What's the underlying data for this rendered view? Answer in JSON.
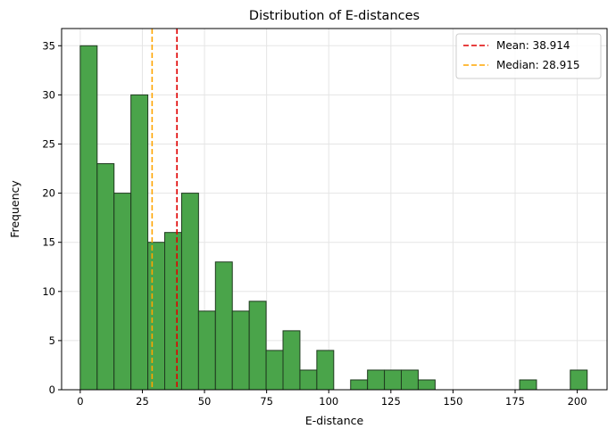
{
  "chart_data": {
    "type": "bar",
    "title": "Distribution of E-distances",
    "xlabel": "E-distance",
    "ylabel": "Frequency",
    "xlim": [
      -7.5,
      212
    ],
    "ylim": [
      0,
      36.75
    ],
    "bin_edges": [
      0.0,
      6.8,
      13.6,
      20.4,
      27.2,
      34.0,
      40.8,
      47.6,
      54.4,
      61.2,
      68.0,
      74.8,
      81.6,
      88.4,
      95.2,
      102.0,
      108.8,
      115.6,
      122.4,
      129.2,
      136.0,
      142.8,
      149.6,
      156.4,
      163.2,
      170.0,
      176.8,
      183.6,
      190.4,
      197.2,
      204.0
    ],
    "values": [
      35,
      23,
      20,
      30,
      15,
      16,
      20,
      8,
      13,
      8,
      9,
      4,
      6,
      2,
      4,
      0,
      1,
      2,
      2,
      2,
      1,
      0,
      0,
      0,
      0,
      0,
      1,
      0,
      0,
      2
    ],
    "x_ticks": [
      0,
      25,
      50,
      75,
      100,
      125,
      150,
      175,
      200
    ],
    "y_ticks": [
      0,
      5,
      10,
      15,
      20,
      25,
      30,
      35
    ],
    "bar_color": "#4aa44a",
    "bar_edge_color": "#1f3a1f",
    "grid": true,
    "legend_position": "top-right",
    "reference_lines": [
      {
        "label": "Mean: 38.914",
        "value": 38.914,
        "color": "#e00000",
        "style": "dashed"
      },
      {
        "label": "Median: 28.915",
        "value": 28.915,
        "color": "#ffa500",
        "style": "dashed"
      }
    ]
  }
}
